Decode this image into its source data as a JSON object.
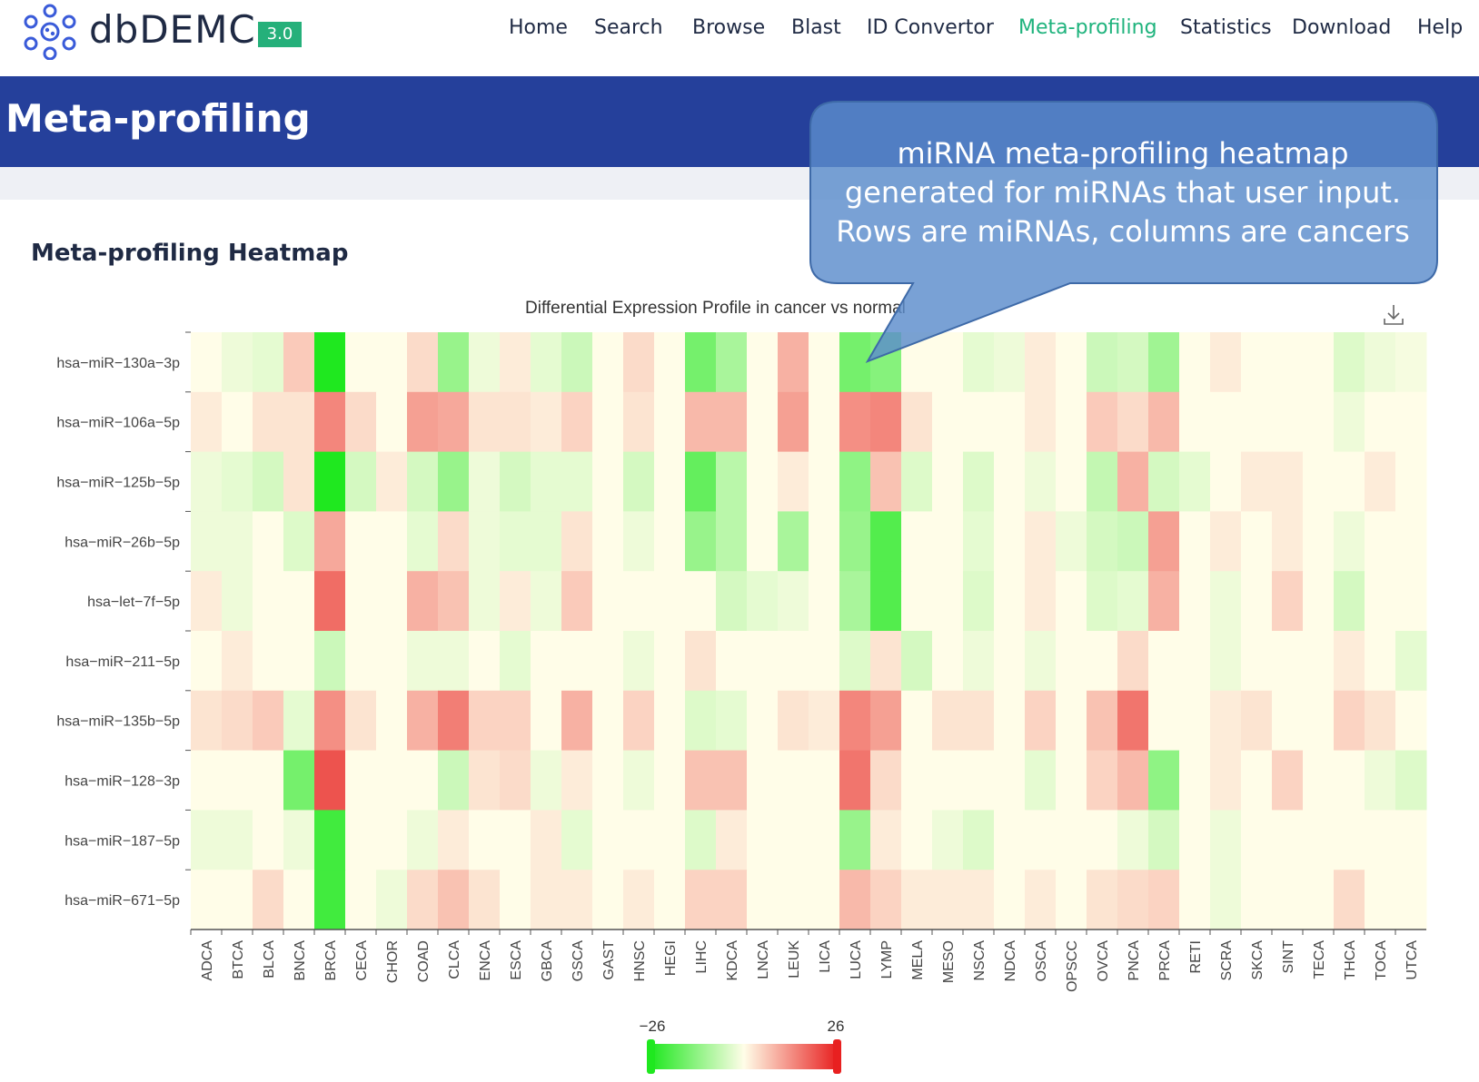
{
  "header": {
    "brand": "dbDEMC",
    "version": "3.0",
    "nav": [
      {
        "label": "Home",
        "active": false
      },
      {
        "label": "Search",
        "active": false
      },
      {
        "label": "Browse",
        "active": false
      },
      {
        "label": "Blast",
        "active": false
      },
      {
        "label": "ID Convertor",
        "active": false
      },
      {
        "label": "Meta-profiling",
        "active": true
      },
      {
        "label": "Statistics",
        "active": false
      },
      {
        "label": "Download",
        "active": false
      },
      {
        "label": "Help",
        "active": false
      }
    ],
    "accent_color": "#1fb37d"
  },
  "banner": {
    "title": "Meta-profiling",
    "color": "#25409b"
  },
  "section": {
    "title": "Meta-profiling Heatmap"
  },
  "callout": {
    "lines": [
      "miRNA meta-profiling heatmap",
      "generated for miRNAs that user input.",
      "Rows are miRNAs, columns are cancers"
    ]
  },
  "icons": {
    "logo": "molecule-logo-icon",
    "download": "download-icon"
  },
  "chart_data": {
    "type": "heatmap",
    "title": "Differential Expression Profile in cancer vs normal",
    "rows": [
      "hsa-miR-130a-3p",
      "hsa-miR-106a-5p",
      "hsa-miR-125b-5p",
      "hsa-miR-26b-5p",
      "hsa-let-7f-5p",
      "hsa-miR-211-5p",
      "hsa-miR-135b-5p",
      "hsa-miR-128-3p",
      "hsa-miR-187-5p",
      "hsa-miR-671-5p"
    ],
    "columns": [
      "ADCA",
      "BTCA",
      "BLCA",
      "BNCA",
      "BRCA",
      "CECA",
      "CHOR",
      "COAD",
      "CLCA",
      "ENCA",
      "ESCA",
      "GBCA",
      "GSCA",
      "GAST",
      "HNSC",
      "HEGI",
      "LIHC",
      "KDCA",
      "LNCA",
      "LEUK",
      "LICA",
      "LUCA",
      "LYMP",
      "MELA",
      "MESO",
      "NSCA",
      "NDCA",
      "OSCA",
      "OPSCC",
      "OVCA",
      "PNCA",
      "PRCA",
      "RETI",
      "SCRA",
      "SKCA",
      "SINT",
      "TECA",
      "THCA",
      "TOCA",
      "UTCA"
    ],
    "values": [
      [
        0,
        -2,
        -3,
        6,
        -26,
        0,
        0,
        4,
        -12,
        -2,
        2,
        -3,
        -6,
        0,
        4,
        0,
        -16,
        -10,
        0,
        9,
        0,
        -16,
        -14,
        0,
        0,
        -3,
        -2,
        2,
        0,
        -6,
        -5,
        -11,
        0,
        2,
        0,
        0,
        0,
        -4,
        -2,
        -1
      ],
      [
        2,
        0,
        3,
        3,
        14,
        4,
        0,
        11,
        10,
        3,
        3,
        2,
        5,
        0,
        3,
        0,
        8,
        8,
        0,
        11,
        0,
        13,
        14,
        3,
        0,
        0,
        0,
        2,
        0,
        6,
        4,
        8,
        0,
        0,
        0,
        0,
        0,
        -2,
        0,
        0
      ],
      [
        -2,
        -3,
        -5,
        3,
        -26,
        -5,
        2,
        -5,
        -12,
        -2,
        -5,
        -3,
        -3,
        0,
        -5,
        0,
        -18,
        -8,
        0,
        2,
        0,
        -13,
        7,
        -4,
        0,
        -4,
        0,
        -2,
        0,
        -7,
        9,
        -5,
        -3,
        0,
        2,
        2,
        0,
        0,
        2,
        0
      ],
      [
        -2,
        -2,
        0,
        -4,
        10,
        0,
        0,
        -3,
        4,
        -2,
        -3,
        -3,
        3,
        0,
        -2,
        0,
        -12,
        -8,
        0,
        -10,
        0,
        -12,
        -20,
        0,
        0,
        -3,
        0,
        2,
        -2,
        -5,
        -6,
        11,
        0,
        2,
        0,
        2,
        0,
        -2,
        0,
        0
      ],
      [
        2,
        -2,
        0,
        0,
        17,
        0,
        0,
        9,
        7,
        -2,
        2,
        -2,
        6,
        0,
        0,
        0,
        0,
        -5,
        -3,
        -2,
        0,
        -10,
        -20,
        0,
        0,
        -4,
        0,
        2,
        0,
        -4,
        -3,
        9,
        0,
        -2,
        0,
        5,
        0,
        -5,
        0,
        0
      ],
      [
        0,
        2,
        0,
        0,
        -6,
        0,
        0,
        -2,
        -2,
        0,
        -3,
        0,
        0,
        0,
        -2,
        0,
        3,
        0,
        0,
        0,
        0,
        -4,
        3,
        -5,
        0,
        -2,
        0,
        -2,
        0,
        0,
        4,
        0,
        0,
        -2,
        0,
        0,
        0,
        2,
        0,
        -3
      ],
      [
        3,
        4,
        6,
        -3,
        13,
        3,
        0,
        9,
        15,
        5,
        5,
        0,
        9,
        0,
        5,
        0,
        -4,
        -3,
        0,
        3,
        2,
        14,
        11,
        0,
        3,
        3,
        0,
        5,
        0,
        7,
        16,
        0,
        0,
        2,
        3,
        0,
        0,
        5,
        3,
        0
      ],
      [
        0,
        0,
        0,
        -16,
        20,
        0,
        0,
        0,
        -6,
        3,
        4,
        -2,
        2,
        0,
        -2,
        0,
        7,
        7,
        0,
        0,
        0,
        16,
        4,
        0,
        0,
        0,
        0,
        -3,
        0,
        5,
        8,
        -13,
        0,
        2,
        0,
        5,
        0,
        0,
        -2,
        -4
      ],
      [
        -2,
        -2,
        0,
        -2,
        -22,
        0,
        0,
        -2,
        2,
        0,
        0,
        2,
        -3,
        0,
        0,
        0,
        -4,
        2,
        0,
        0,
        0,
        -12,
        2,
        0,
        -2,
        -4,
        0,
        0,
        0,
        0,
        -2,
        -5,
        0,
        -2,
        0,
        0,
        0,
        0,
        0,
        0
      ],
      [
        0,
        0,
        4,
        0,
        -22,
        0,
        -2,
        4,
        7,
        3,
        0,
        2,
        2,
        0,
        2,
        0,
        5,
        5,
        0,
        0,
        0,
        8,
        5,
        2,
        2,
        2,
        0,
        2,
        0,
        3,
        4,
        5,
        0,
        -2,
        0,
        0,
        0,
        4,
        0,
        0
      ]
    ],
    "colorscale": {
      "min": -26,
      "max": 26,
      "low_color": "#1fe81f",
      "mid_color": "#fffde8",
      "high_color": "#e82020"
    },
    "legend": {
      "min_label": "−26",
      "max_label": "26",
      "position": "bottom-center"
    }
  }
}
